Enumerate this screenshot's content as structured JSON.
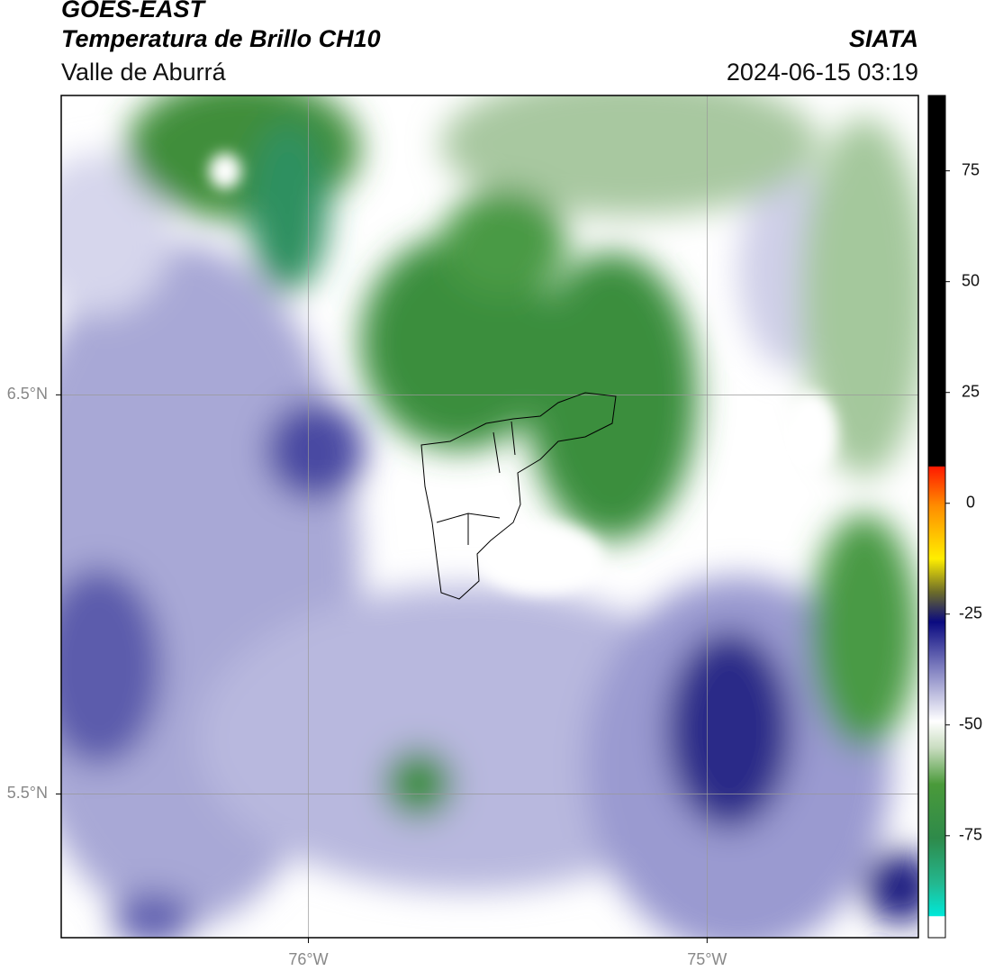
{
  "header": {
    "title": "GOES-EAST",
    "subtitle": "Temperatura de Brillo CH10",
    "region": "Valle de Aburrá",
    "source": "SIATA",
    "datetime": "2024-06-15 03:19"
  },
  "map": {
    "lon_range": [
      -76.62,
      -74.47
    ],
    "lat_range": [
      5.14,
      7.25
    ],
    "lon_ticks": [
      {
        "value": -76,
        "label": "76°W"
      },
      {
        "value": -75,
        "label": "75°W"
      }
    ],
    "lat_ticks": [
      {
        "value": 6.5,
        "label": "6.5°N"
      },
      {
        "value": 5.5,
        "label": "5.5°N"
      }
    ]
  },
  "colorbar": {
    "range": [
      -98,
      92
    ],
    "ticks": [
      75,
      50,
      25,
      0,
      -25,
      -50,
      -75
    ]
  }
}
